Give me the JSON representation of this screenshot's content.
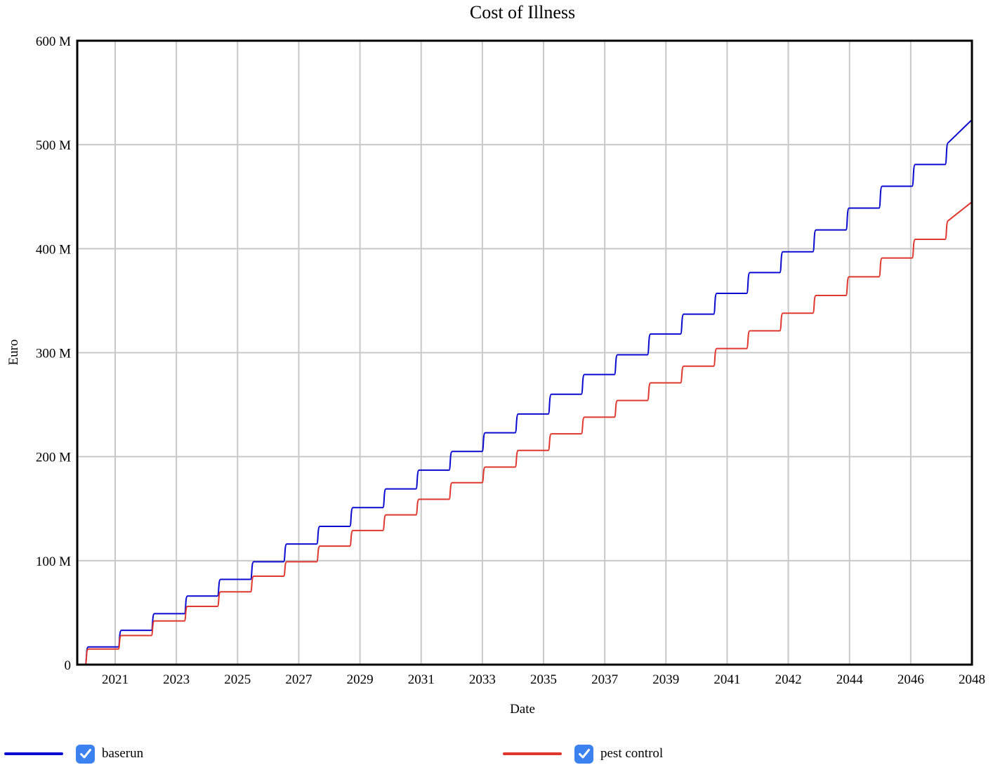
{
  "chart_data": {
    "type": "line",
    "title": "Cost of Illness",
    "xlabel": "Date",
    "ylabel": "Euro",
    "x_ticks": [
      "2021",
      "2023",
      "2025",
      "2027",
      "2029",
      "2031",
      "2033",
      "2035",
      "2037",
      "2039",
      "2041",
      "2042",
      "2044",
      "2046",
      "2048"
    ],
    "y_ticks": [
      "0",
      "100 M",
      "200 M",
      "300 M",
      "400 M",
      "500 M",
      "600 M"
    ],
    "xlim": [
      2019.6,
      2048
    ],
    "ylim": [
      0,
      600
    ],
    "y_unit": "M Euro",
    "grid": true,
    "legend_position": "bottom",
    "series": [
      {
        "name": "baserun",
        "color": "#0a0ad0",
        "step_dates": [
          2019.85,
          2020.9,
          2021.95,
          2023.0,
          2024.05,
          2025.1,
          2026.15,
          2027.2,
          2028.25,
          2029.3,
          2030.35,
          2031.4,
          2032.45,
          2033.5,
          2034.55,
          2035.6,
          2036.65,
          2037.7,
          2038.75,
          2039.8,
          2040.85,
          2041.9,
          2042.95,
          2044.0,
          2045.05,
          2046.1,
          2047.15
        ],
        "levels": [
          0,
          17,
          33,
          49,
          66,
          82,
          99,
          116,
          133,
          151,
          169,
          187,
          205,
          223,
          241,
          260,
          279,
          298,
          318,
          337,
          357,
          377,
          397,
          418,
          439,
          460,
          481,
          502,
          524
        ],
        "end_date": 2048
      },
      {
        "name": "pest control",
        "color": "#e0382e",
        "step_dates": [
          2019.85,
          2020.9,
          2021.95,
          2023.0,
          2024.05,
          2025.1,
          2026.15,
          2027.2,
          2028.25,
          2029.3,
          2030.35,
          2031.4,
          2032.45,
          2033.5,
          2034.55,
          2035.6,
          2036.65,
          2037.7,
          2038.75,
          2039.8,
          2040.85,
          2041.9,
          2042.95,
          2044.0,
          2045.05,
          2046.1,
          2047.15
        ],
        "levels": [
          0,
          15,
          28,
          42,
          56,
          70,
          85,
          99,
          114,
          129,
          144,
          159,
          175,
          190,
          206,
          222,
          238,
          254,
          271,
          287,
          304,
          321,
          338,
          355,
          373,
          391,
          409,
          427,
          445
        ],
        "end_date": 2048
      }
    ]
  },
  "legend": {
    "items": [
      {
        "label": "baserun",
        "color": "#0a0ad0",
        "checked": true
      },
      {
        "label": "pest control",
        "color": "#e0382e",
        "checked": true
      }
    ],
    "checkbox_color": "#3b82f0"
  }
}
